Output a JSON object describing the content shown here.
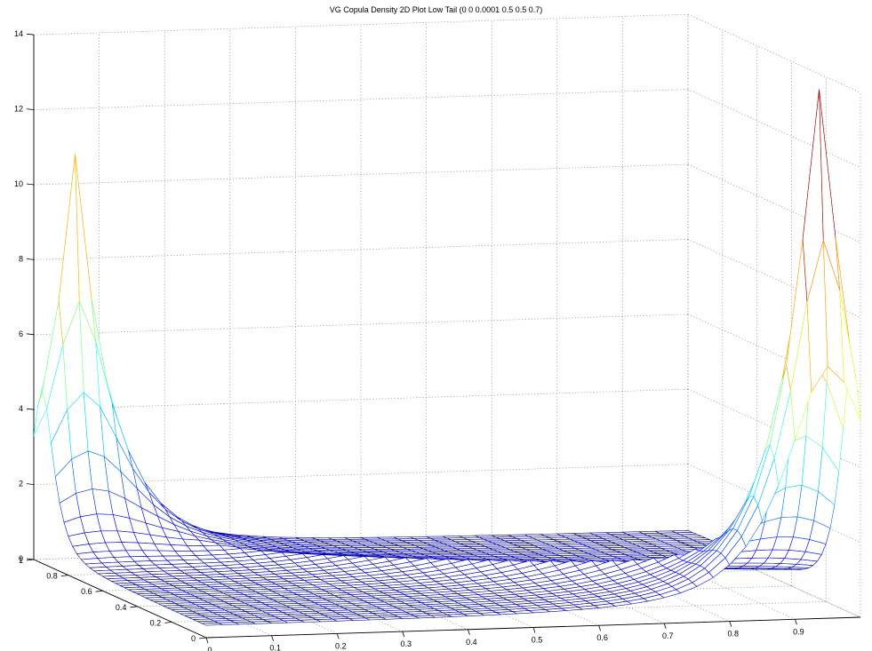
{
  "chart_data": {
    "type": "surface",
    "title": "VG Copula Density 2D Plot Low Tail (0 0 0.0001 0.5 0.5 0.7)",
    "xlabel": "",
    "ylabel": "",
    "zlabel": "",
    "x_ticks": [
      "0",
      "0.1",
      "0.2",
      "0.3",
      "0.4",
      "0.5",
      "0.6",
      "0.7",
      "0.8",
      "0.9"
    ],
    "y_ticks": [
      "0",
      "0.2",
      "0.4",
      "0.6",
      "0.8",
      "1"
    ],
    "z_ticks": [
      "0",
      "2",
      "4",
      "6",
      "8",
      "10",
      "12",
      "14"
    ],
    "xlim": [
      0,
      1
    ],
    "ylim": [
      0,
      1
    ],
    "zlim": [
      0,
      14
    ],
    "grid": true,
    "colormap": "jet",
    "peaks": [
      {
        "x": 0.05,
        "y": 0.95,
        "z": 10.2
      },
      {
        "x": 0.95,
        "y": 0.05,
        "z": 13.7
      }
    ]
  }
}
